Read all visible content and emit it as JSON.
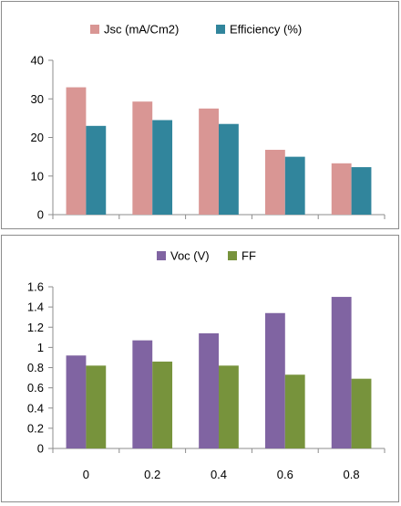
{
  "chart_data": [
    {
      "type": "bar",
      "categories": [
        "0",
        "0.2",
        "0.4",
        "0.6",
        "0.8"
      ],
      "show_category_labels": false,
      "series": [
        {
          "name": "Jsc (mA/Cm2)",
          "values": [
            33,
            29.3,
            27.5,
            16.8,
            13.3
          ],
          "color": "#d99694"
        },
        {
          "name": "Efficiency (%)",
          "values": [
            23,
            24.5,
            23.5,
            15,
            12.3
          ],
          "color": "#31859c"
        }
      ],
      "ylim": [
        0,
        40
      ],
      "yticks": [
        "0",
        "10",
        "20",
        "30",
        "40"
      ],
      "grid": false,
      "legend_position": "top"
    },
    {
      "type": "bar",
      "categories": [
        "0",
        "0.2",
        "0.4",
        "0.6",
        "0.8"
      ],
      "show_category_labels": true,
      "series": [
        {
          "name": "Voc (V)",
          "values": [
            0.92,
            1.07,
            1.14,
            1.34,
            1.5
          ],
          "color": "#8064a2"
        },
        {
          "name": "FF",
          "values": [
            0.82,
            0.86,
            0.82,
            0.73,
            0.69
          ],
          "color": "#77933c"
        }
      ],
      "ylim": [
        0,
        1.6
      ],
      "yticks": [
        "0",
        "0.2",
        "0.4",
        "0.6",
        "0.8",
        "1",
        "1.2",
        "1.4",
        "1.6"
      ],
      "grid": false,
      "legend_position": "top"
    }
  ]
}
